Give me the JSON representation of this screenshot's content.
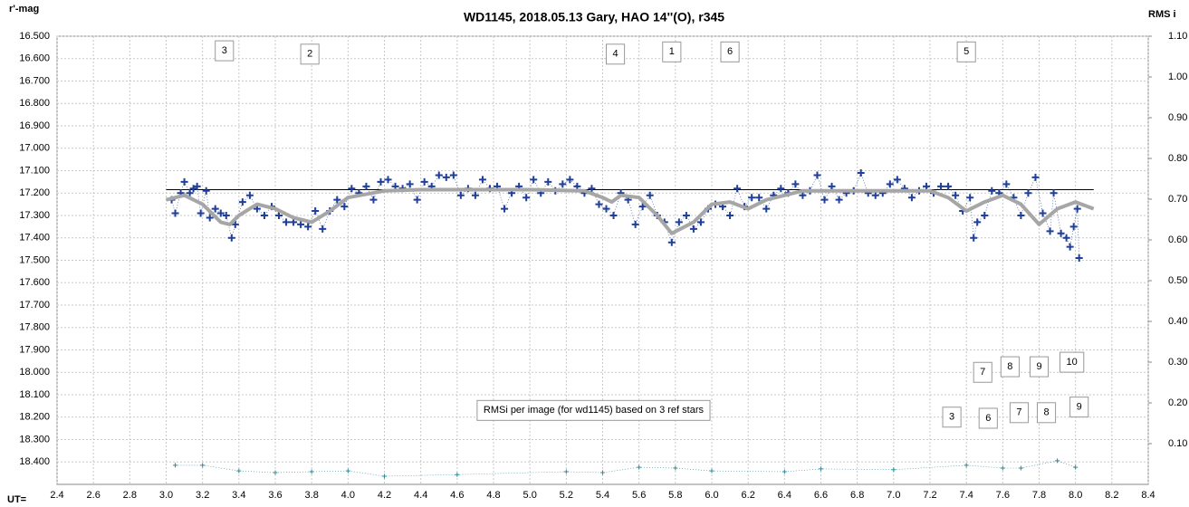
{
  "chart_data": {
    "type": "scatter",
    "title": "WD1145, 2018.05.13  Gary, HAO  14''(O), r345",
    "y_label": "r'-mag",
    "y2_label": "RMS i",
    "x_label": "UT=",
    "xlim": [
      2.4,
      8.4
    ],
    "ylim": [
      16.5,
      18.5
    ],
    "y_inverted": true,
    "y2lim": [
      0,
      1.1
    ],
    "grid": true,
    "xticks": [
      2.4,
      2.6,
      2.8,
      {
        "value": 3,
        "label": "3.0"
      },
      3.2,
      3.4,
      3.6,
      3.8,
      {
        "value": 4,
        "label": "4.0"
      },
      4.2,
      4.4,
      4.6,
      4.8,
      {
        "value": 5,
        "label": "5.0"
      },
      5.2,
      5.4,
      5.6,
      5.8,
      {
        "value": 6,
        "label": "6.0"
      },
      6.2,
      6.4,
      6.6,
      6.8,
      {
        "value": 7,
        "label": "7.0"
      },
      7.2,
      7.4,
      7.6,
      7.8,
      {
        "value": 8,
        "label": "8.0"
      },
      8.2,
      8.4
    ],
    "yticks": [
      {
        "value": 16.5,
        "label": "16.500"
      },
      {
        "value": 16.6,
        "label": "16.600"
      },
      {
        "value": 16.7,
        "label": "16.700"
      },
      {
        "value": 16.8,
        "label": "16.800"
      },
      {
        "value": 16.9,
        "label": "16.900"
      },
      {
        "value": 17,
        "label": "17.000"
      },
      {
        "value": 17.1,
        "label": "17.100"
      },
      {
        "value": 17.2,
        "label": "17.200"
      },
      {
        "value": 17.3,
        "label": "17.300"
      },
      {
        "value": 17.4,
        "label": "17.400"
      },
      {
        "value": 17.5,
        "label": "17.500"
      },
      {
        "value": 17.6,
        "label": "17.600"
      },
      {
        "value": 17.7,
        "label": "17.700"
      },
      {
        "value": 17.8,
        "label": "17.800"
      },
      {
        "value": 17.9,
        "label": "17.900"
      },
      {
        "value": 18,
        "label": "18.000"
      },
      {
        "value": 18.1,
        "label": "18.100"
      },
      {
        "value": 18.2,
        "label": "18.200"
      },
      {
        "value": 18.3,
        "label": "18.300"
      },
      {
        "value": 18.4,
        "label": "18.400"
      }
    ],
    "y2ticks": [
      {
        "value": 0.1,
        "label": "0.10"
      },
      {
        "value": 0.2,
        "label": "0.20"
      },
      {
        "value": 0.3,
        "label": "0.30"
      },
      {
        "value": 0.4,
        "label": "0.40"
      },
      {
        "value": 0.5,
        "label": "0.50"
      },
      {
        "value": 0.6,
        "label": "0.60"
      },
      {
        "value": 0.7,
        "label": "0.70"
      },
      {
        "value": 0.8,
        "label": "0.80"
      },
      {
        "value": 0.9,
        "label": "0.90"
      },
      {
        "value": 1,
        "label": "1.00"
      },
      {
        "value": 1.1,
        "label": "1.10"
      }
    ],
    "hline": {
      "y": 17.185,
      "x": [
        3.0,
        8.1
      ],
      "color": "#000000"
    },
    "series": [
      {
        "marker": "plus",
        "color": "#1f3f99",
        "x": [
          3.03,
          3.05,
          3.08,
          3.1,
          3.13,
          3.15,
          3.17,
          3.19,
          3.22,
          3.24,
          3.27,
          3.3,
          3.33,
          3.36,
          3.38,
          3.42,
          3.46,
          3.5,
          3.54,
          3.58,
          3.62,
          3.66,
          3.7,
          3.74,
          3.78,
          3.82,
          3.86,
          3.9,
          3.94,
          3.98,
          4.02,
          4.06,
          4.1,
          4.14,
          4.18,
          4.22,
          4.26,
          4.3,
          4.34,
          4.38,
          4.42,
          4.46,
          4.5,
          4.54,
          4.58,
          4.62,
          4.66,
          4.7,
          4.74,
          4.78,
          4.82,
          4.86,
          4.9,
          4.94,
          4.98,
          5.02,
          5.06,
          5.1,
          5.14,
          5.18,
          5.22,
          5.26,
          5.3,
          5.34,
          5.38,
          5.42,
          5.46,
          5.5,
          5.54,
          5.58,
          5.62,
          5.66,
          5.7,
          5.74,
          5.78,
          5.82,
          5.86,
          5.9,
          5.94,
          5.98,
          6.02,
          6.06,
          6.1,
          6.14,
          6.18,
          6.22,
          6.26,
          6.3,
          6.34,
          6.38,
          6.42,
          6.46,
          6.5,
          6.54,
          6.58,
          6.62,
          6.66,
          6.7,
          6.74,
          6.78,
          6.82,
          6.86,
          6.9,
          6.94,
          6.98,
          7.02,
          7.06,
          7.1,
          7.14,
          7.18,
          7.22,
          7.26,
          7.3,
          7.34,
          7.38,
          7.42,
          7.44,
          7.46,
          7.5,
          7.54,
          7.58,
          7.62,
          7.66,
          7.7,
          7.74,
          7.78,
          7.82,
          7.86,
          7.88,
          7.92,
          7.95,
          7.97,
          7.99,
          8.01,
          8.02
        ],
        "values": [
          17.23,
          17.29,
          17.2,
          17.15,
          17.2,
          17.18,
          17.17,
          17.29,
          17.19,
          17.31,
          17.27,
          17.29,
          17.3,
          17.4,
          17.34,
          17.24,
          17.21,
          17.27,
          17.3,
          17.26,
          17.3,
          17.33,
          17.33,
          17.34,
          17.35,
          17.28,
          17.36,
          17.28,
          17.23,
          17.26,
          17.18,
          17.2,
          17.17,
          17.23,
          17.15,
          17.14,
          17.17,
          17.18,
          17.16,
          17.23,
          17.15,
          17.17,
          17.12,
          17.13,
          17.12,
          17.21,
          17.18,
          17.21,
          17.14,
          17.18,
          17.17,
          17.27,
          17.2,
          17.17,
          17.22,
          17.14,
          17.2,
          17.15,
          17.19,
          17.16,
          17.14,
          17.17,
          17.2,
          17.18,
          17.25,
          17.27,
          17.3,
          17.2,
          17.23,
          17.34,
          17.26,
          17.21,
          17.3,
          17.33,
          17.42,
          17.33,
          17.3,
          17.36,
          17.33,
          17.27,
          17.25,
          17.26,
          17.3,
          17.18,
          17.26,
          17.22,
          17.22,
          17.27,
          17.21,
          17.18,
          17.2,
          17.16,
          17.21,
          17.19,
          17.12,
          17.23,
          17.17,
          17.23,
          17.2,
          17.19,
          17.11,
          17.2,
          17.21,
          17.2,
          17.16,
          17.14,
          17.18,
          17.22,
          17.19,
          17.17,
          17.2,
          17.17,
          17.17,
          17.21,
          17.28,
          17.22,
          17.4,
          17.33,
          17.3,
          17.19,
          17.2,
          17.16,
          17.22,
          17.3,
          17.2,
          17.13,
          17.29,
          17.37,
          17.2,
          17.38,
          17.4,
          17.44,
          17.35,
          17.27,
          17.49
        ]
      },
      {
        "marker": "none",
        "color": "#a6a6a6",
        "x": [
          3.0,
          3.1,
          3.2,
          3.3,
          3.35,
          3.4,
          3.5,
          3.6,
          3.7,
          3.8,
          3.9,
          4.0,
          4.2,
          4.4,
          5.0,
          5.3,
          5.4,
          5.45,
          5.5,
          5.6,
          5.7,
          5.78,
          5.9,
          6.0,
          6.1,
          6.2,
          6.3,
          6.5,
          7.2,
          7.3,
          7.4,
          7.5,
          7.6,
          7.7,
          7.8,
          7.9,
          8.0,
          8.1
        ],
        "values": [
          17.23,
          17.21,
          17.25,
          17.33,
          17.34,
          17.3,
          17.25,
          17.27,
          17.31,
          17.33,
          17.28,
          17.22,
          17.19,
          17.185,
          17.185,
          17.19,
          17.22,
          17.24,
          17.21,
          17.22,
          17.3,
          17.38,
          17.33,
          17.25,
          17.24,
          17.27,
          17.23,
          17.19,
          17.19,
          17.22,
          17.28,
          17.24,
          17.21,
          17.25,
          17.34,
          17.27,
          17.24,
          17.27
        ]
      },
      {
        "marker": "small-plus",
        "color": "#2e8b9a",
        "axis": "y2",
        "x": [
          3.05,
          3.2,
          3.4,
          3.6,
          3.8,
          4.0,
          4.2,
          4.6,
          5.2,
          5.4,
          5.6,
          5.8,
          6.0,
          6.4,
          6.6,
          7.0,
          7.4,
          7.6,
          7.7,
          7.9,
          8.0
        ],
        "values": [
          0.047,
          0.047,
          0.033,
          0.029,
          0.031,
          0.033,
          0.02,
          0.024,
          0.031,
          0.029,
          0.042,
          0.04,
          0.033,
          0.031,
          0.038,
          0.036,
          0.047,
          0.04,
          0.04,
          0.058,
          0.042
        ]
      }
    ],
    "annotations": [
      {
        "text": "3",
        "x": 3.32,
        "y": 16.565
      },
      {
        "text": "2",
        "x": 3.79,
        "y": 16.58
      },
      {
        "text": "4",
        "x": 5.47,
        "y": 16.58
      },
      {
        "text": "1",
        "x": 5.78,
        "y": 16.57
      },
      {
        "text": "6",
        "x": 6.1,
        "y": 16.57
      },
      {
        "text": "5",
        "x": 7.4,
        "y": 16.57
      },
      {
        "text": "7",
        "x": 7.49,
        "y": 18.0
      },
      {
        "text": "8",
        "x": 7.64,
        "y": 17.975
      },
      {
        "text": "9",
        "x": 7.8,
        "y": 17.975
      },
      {
        "text": "10",
        "x": 7.98,
        "y": 17.955
      },
      {
        "text": "3",
        "x": 7.32,
        "y": 18.2
      },
      {
        "text": "6",
        "x": 7.52,
        "y": 18.205
      },
      {
        "text": "7",
        "x": 7.69,
        "y": 18.18
      },
      {
        "text": "8",
        "x": 7.84,
        "y": 18.18
      },
      {
        "text": "9",
        "x": 8.02,
        "y": 18.155
      },
      {
        "text": "RMSi per image (for wd1145) based on 3 ref stars",
        "x": 5.35,
        "y": 18.17
      }
    ]
  }
}
